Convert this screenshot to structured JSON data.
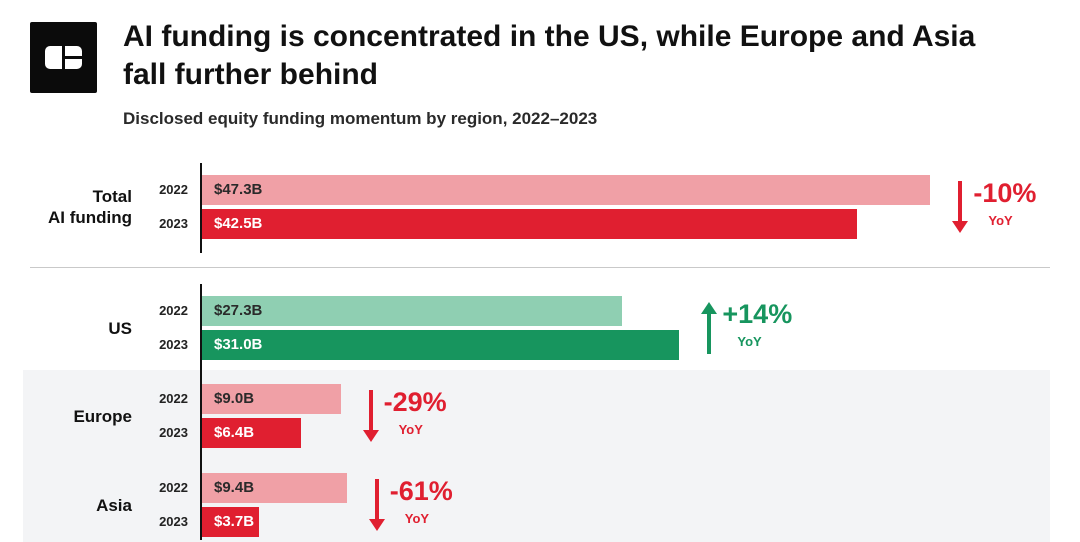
{
  "header": {
    "title": "AI funding is concentrated in the US, while Europe and Asia fall further behind",
    "subtitle": "Disclosed equity funding momentum by region, 2022–2023"
  },
  "icons": {
    "brand": "cb-logo-icon",
    "decrease": "arrow-down-icon",
    "increase": "arrow-up-icon"
  },
  "colors": {
    "red_2022": "#f0a0a6",
    "red_2023": "#e01f30",
    "green_2022": "#8fcfb2",
    "green_2023": "#17955e",
    "band": "#f3f4f6"
  },
  "chart_data": {
    "type": "bar",
    "orientation": "horizontal",
    "unit": "$B",
    "title": "AI funding is concentrated in the US, while Europe and Asia fall further behind",
    "subtitle": "Disclosed equity funding momentum by region, 2022–2023",
    "categories": [
      "Total AI funding",
      "US",
      "Europe",
      "Asia"
    ],
    "series": [
      {
        "name": "2022",
        "values": [
          47.3,
          27.3,
          9.0,
          9.4
        ],
        "labels": [
          "$47.3B",
          "$27.3B",
          "$9.0B",
          "$9.4B"
        ]
      },
      {
        "name": "2023",
        "values": [
          42.5,
          31.0,
          6.4,
          3.7
        ],
        "labels": [
          "$42.5B",
          "$31.0B",
          "$6.4B",
          "$3.7B"
        ]
      }
    ],
    "yoy_change": [
      "-10%",
      "+14%",
      "-29%",
      "-61%"
    ],
    "yoy_label": "YoY",
    "groups": [
      {
        "label": "Total\nAI funding",
        "direction": "down"
      },
      {
        "label": "US",
        "direction": "up"
      },
      {
        "label": "Europe",
        "direction": "down"
      },
      {
        "label": "Asia",
        "direction": "down"
      }
    ]
  }
}
